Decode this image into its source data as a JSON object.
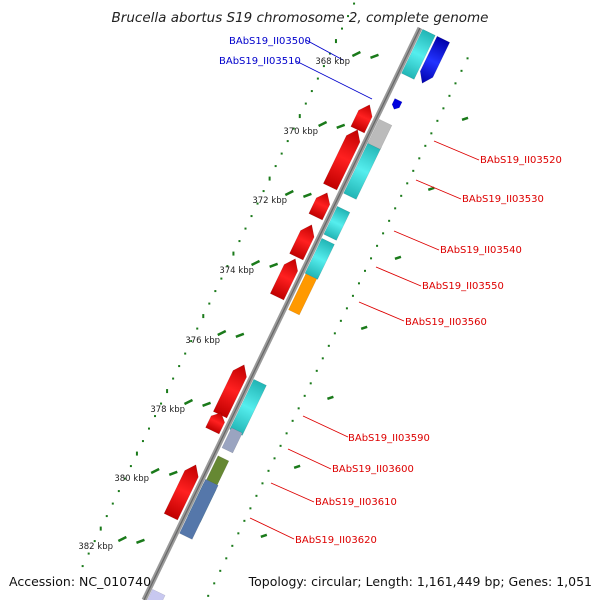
{
  "title": "Brucella abortus S19 chromosome 2, complete genome",
  "accession": "Accession: NC_010740",
  "topology": "Topology: circular; Length: 1,161,449 bp; Genes: 1,051",
  "tick_labels": [
    "368 kbp",
    "370 kbp",
    "372 kbp",
    "374 kbp",
    "376 kbp",
    "378 kbp",
    "380 kbp",
    "382 kbp"
  ],
  "gene_labels": [
    {
      "text": "BAbS19_II03500",
      "color": "#0000cc"
    },
    {
      "text": "BAbS19_II03510",
      "color": "#0000cc"
    },
    {
      "text": "BAbS19_II03520",
      "color": "#dd0000"
    },
    {
      "text": "BAbS19_II03530",
      "color": "#dd0000"
    },
    {
      "text": "BAbS19_II03540",
      "color": "#dd0000"
    },
    {
      "text": "BAbS19_II03550",
      "color": "#dd0000"
    },
    {
      "text": "BAbS19_II03560",
      "color": "#dd0000"
    },
    {
      "text": "BAbS19_II03590",
      "color": "#dd0000"
    },
    {
      "text": "BAbS19_II03600",
      "color": "#dd0000"
    },
    {
      "text": "BAbS19_II03610",
      "color": "#dd0000"
    },
    {
      "text": "BAbS19_II03620",
      "color": "#dd0000"
    }
  ],
  "colors": {
    "backbone": "#888888",
    "gene_red": "#ff0000",
    "gene_blue": "#0000dd",
    "cds_cyan": "#33cccc",
    "gc_dots": "#1a7a1a",
    "orange": "#ff9900",
    "olive": "#668833",
    "steel_blue": "#5577aa",
    "gray": "#bbbbbb"
  }
}
